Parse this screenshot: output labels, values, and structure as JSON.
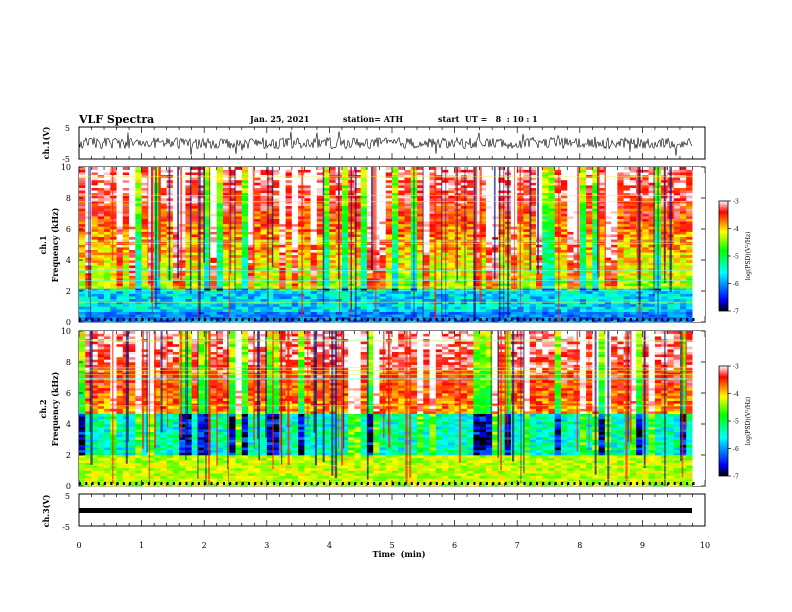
{
  "header": {
    "title": "VLF Spectra",
    "date": "Jan. 25, 2021",
    "station": "station= ATH",
    "start_ut": "start  UT =   8  : 10 : 1"
  },
  "panels": {
    "ch1_waveform": {
      "ylabel": "ch.1(V)",
      "ytick_top": "5",
      "ytick_bottom": "-5"
    },
    "ch1_spec": {
      "ylabel": "ch.1\nFrequency  (kHz)",
      "ylabel_line1": "ch.1",
      "ylabel_line2": "Frequency  (kHz)"
    },
    "ch2_spec": {
      "ylabel_line1": "ch.2",
      "ylabel_line2": "Frequency  (kHz)"
    },
    "ch3_waveform": {
      "ylabel": "ch.3(V)",
      "ytick_top": "5",
      "ytick_bottom": "-5"
    }
  },
  "colorbar": {
    "label": "log(PSD)(V²/Hz)",
    "ticks": [
      "-3",
      "-4",
      "-5",
      "-6",
      "-7"
    ]
  },
  "chart_data": {
    "type": "heatmap",
    "xlabel": "Time  (min)",
    "xlim": [
      0,
      10
    ],
    "xticks": [
      "0",
      "1",
      "2",
      "3",
      "4",
      "5",
      "6",
      "7",
      "8",
      "9",
      "10"
    ],
    "freq_ylim": [
      0,
      10
    ],
    "freq_yticks": [
      "0",
      "2",
      "4",
      "6",
      "8",
      "10"
    ],
    "waveform_ylim": [
      -5,
      5
    ],
    "data_end_min": 9.8,
    "colorscale_range": [
      -7,
      -3
    ],
    "colors": [
      "#000000",
      "#0000ff",
      "#00ffff",
      "#00ff00",
      "#ffff00",
      "#ff0000",
      "#ffffff"
    ]
  }
}
